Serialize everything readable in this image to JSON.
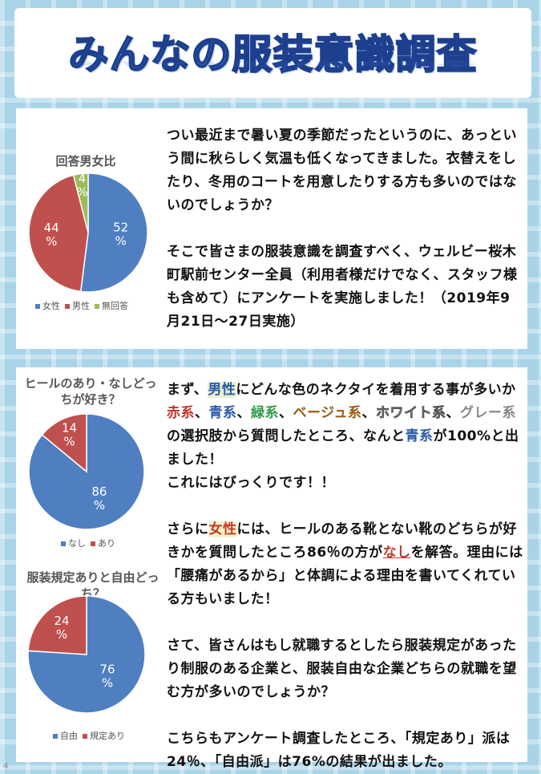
{
  "header": {
    "title": "みんなの服装意識調査",
    "page_number": "4"
  },
  "colors": {
    "blue": "#4f7fc1",
    "red": "#c0504d",
    "green": "#9bbb59"
  },
  "section1": {
    "paragraph1": "つい最近まで暑い夏の季節だったというのに、あっという間に秋らしく気温も低くなってきました。衣替えをしたり、冬用のコートを用意したりする方も多いのではないのでしょうか？",
    "paragraph2": "そこで皆さまの服装意識を調査すべく、ウェルビー桜木町駅前センター全員（利用者様だけでなく、スタッフ様も含めて）にアンケートを実施しました！（2019年9月21日～27日実施）"
  },
  "section2": {
    "p1": {
      "a": "まず、",
      "b": "男性",
      "c": "にどんな色のネクタイを着用する事が多いか",
      "d": "赤系",
      "e": "、",
      "f": "青系",
      "g": "、",
      "h": "緑系",
      "i": "、",
      "j": "ベージュ系",
      "k": "、",
      "l": "ホワイト系",
      "m": "、",
      "n": "グレー系",
      "o": "の選択肢から質問したところ、なんと",
      "p": "青系",
      "q": "が100%と出ました！",
      "r": "これにはびっくりです！！"
    },
    "p2": {
      "a": "さらに",
      "b": "女性",
      "c": "には、ヒールのある靴とない靴のどちらが好きかを質問したところ86％の方が",
      "d": "なし",
      "e": "を解答。理由には「腰痛があるから」と体調による理由を書いてくれている方もいました！"
    },
    "p3": "さて、皆さんはもし就職するとしたら服装規定があったり制服のある企業と、服装自由な企業どちらの就職を望む方が多いのでしょうか？",
    "p4": "こちらもアンケート調査したところ、「規定あり」派は24％、「自由派」は76%の結果が出ました。"
  },
  "chart_data": [
    {
      "type": "pie",
      "title": "回答男女比",
      "categories": [
        "女性",
        "男性",
        "無回答"
      ],
      "values": [
        52,
        44,
        4
      ],
      "labels": [
        "52\n%",
        "44\n%",
        "4\n%"
      ],
      "colors": [
        "#4f7fc1",
        "#c0504d",
        "#9bbb59"
      ],
      "legend": "bottom"
    },
    {
      "type": "pie",
      "title": "ヒールのあり・なしどっちが好き？",
      "categories": [
        "なし",
        "あり"
      ],
      "values": [
        86,
        14
      ],
      "labels": [
        "86\n%",
        "14\n%"
      ],
      "colors": [
        "#4f7fc1",
        "#c0504d"
      ],
      "legend": "bottom"
    },
    {
      "type": "pie",
      "title": "服装規定ありと自由どっち？",
      "categories": [
        "自由",
        "規定あり"
      ],
      "values": [
        76,
        24
      ],
      "labels": [
        "76\n%",
        "24\n%"
      ],
      "colors": [
        "#4f7fc1",
        "#c0504d"
      ],
      "legend": "bottom"
    }
  ]
}
